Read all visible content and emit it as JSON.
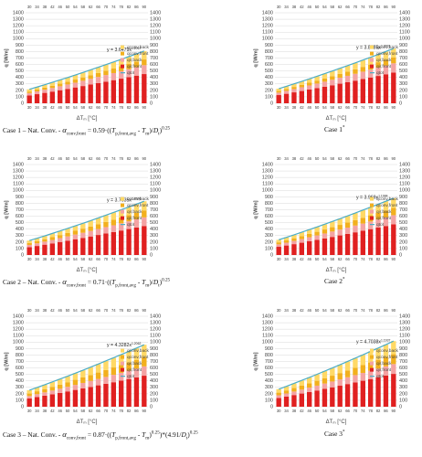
{
  "chart_data": [
    {
      "type": "bar",
      "caption": [
        "Case 1 – Nat. Conv. - ",
        "α",
        "conv,front",
        " = 0.59·((",
        "T",
        "p,front,avg",
        " - ",
        "T",
        "m",
        ")/",
        "D",
        "t",
        ")",
        "0.25"
      ],
      "y_label": "q [W/m]",
      "x_label": [
        "ΔT",
        "m",
        " [°C]"
      ],
      "categories": [
        30,
        34,
        38,
        42,
        46,
        50,
        54,
        58,
        62,
        66,
        70,
        74,
        78,
        82,
        86,
        90
      ],
      "ylim": [
        0,
        1400
      ],
      "yticks": [
        0,
        100,
        200,
        300,
        400,
        500,
        600,
        700,
        800,
        900,
        1000,
        1100,
        1200,
        1300,
        1400
      ],
      "grid": true,
      "trendline": {
        "text": "y = 3.6479x",
        "exponent": "1.2017"
      },
      "series": [
        {
          "name": "qconv,back",
          "color": "#ffd966",
          "values": [
            34,
            39,
            45,
            52,
            58,
            64,
            71,
            77,
            82,
            89,
            95,
            102,
            108,
            115,
            123,
            130
          ]
        },
        {
          "name": "qconv,front",
          "color": "#f2b01e",
          "values": [
            24,
            28,
            32,
            36,
            40,
            44,
            48,
            52,
            57,
            61,
            66,
            70,
            75,
            80,
            84,
            89
          ]
        },
        {
          "name": "qir,back",
          "color": "#f4a3a3",
          "values": [
            37,
            43,
            49,
            55,
            61,
            68,
            74,
            81,
            88,
            95,
            102,
            109,
            116,
            123,
            130,
            137
          ]
        },
        {
          "name": "qir,front",
          "color": "#e02020",
          "values": [
            121,
            141,
            161,
            181,
            202,
            223,
            245,
            267,
            290,
            312,
            335,
            358,
            381,
            405,
            428,
            452
          ]
        },
        {
          "name": "qtot",
          "type": "line",
          "color": "#4bacc6",
          "values": [
            216,
            251,
            287,
            324,
            361,
            399,
            438,
            477,
            517,
            557,
            598,
            639,
            680,
            723,
            765,
            808
          ]
        }
      ]
    },
    {
      "type": "bar",
      "caption": [
        "Case 1",
        "*"
      ],
      "y_label": "q [W/m]",
      "x_label": [
        "ΔT",
        "m",
        " [°C]"
      ],
      "categories": [
        30,
        34,
        38,
        42,
        46,
        50,
        54,
        58,
        62,
        66,
        70,
        74,
        78,
        82,
        86,
        90
      ],
      "ylim": [
        0,
        1400
      ],
      "yticks": [
        0,
        100,
        200,
        300,
        400,
        500,
        600,
        700,
        800,
        900,
        1000,
        1100,
        1200,
        1300,
        1400
      ],
      "grid": true,
      "trendline": {
        "text": "y = 3.8185x",
        "exponent": "1.2001"
      },
      "series": [
        {
          "name": "qconv,back",
          "color": "#ffd966",
          "values": [
            36,
            42,
            48,
            54,
            60,
            67,
            74,
            80,
            86,
            94,
            100,
            106,
            114,
            121,
            128,
            135
          ]
        },
        {
          "name": "qconv,front",
          "color": "#f2b01e",
          "values": [
            25,
            29,
            33,
            37,
            42,
            46,
            50,
            55,
            60,
            64,
            69,
            74,
            78,
            83,
            88,
            93
          ]
        },
        {
          "name": "qir,back",
          "color": "#f4a3a3",
          "values": [
            38,
            45,
            51,
            58,
            64,
            71,
            78,
            85,
            92,
            99,
            106,
            114,
            121,
            129,
            136,
            144
          ]
        },
        {
          "name": "qir,front",
          "color": "#e02020",
          "values": [
            127,
            147,
            169,
            190,
            212,
            234,
            256,
            279,
            303,
            326,
            350,
            375,
            399,
            423,
            449,
            474
          ]
        },
        {
          "name": "qtot",
          "type": "line",
          "color": "#4bacc6",
          "values": [
            226,
            263,
            301,
            339,
            378,
            418,
            458,
            499,
            541,
            583,
            625,
            669,
            712,
            756,
            801,
            846
          ]
        }
      ]
    },
    {
      "type": "bar",
      "caption": [
        "Case 2 – Nat. Conv. - ",
        "α",
        "conv,front",
        " = 0.71·((",
        "T",
        "p,front,avg",
        " - ",
        "T",
        "m",
        ")/",
        "D",
        "t",
        ")",
        "0.25"
      ],
      "y_label": "q [W/m]",
      "x_label": [
        "ΔT",
        "m",
        " [°C]"
      ],
      "categories": [
        30,
        34,
        38,
        42,
        46,
        50,
        54,
        58,
        62,
        66,
        70,
        74,
        78,
        82,
        86,
        90
      ],
      "ylim": [
        0,
        1400
      ],
      "yticks": [
        0,
        100,
        200,
        300,
        400,
        500,
        600,
        700,
        800,
        900,
        1000,
        1100,
        1200,
        1300,
        1400
      ],
      "grid": true,
      "trendline": {
        "text": "y = 3.7635x",
        "exponent": "1.2006"
      },
      "series": [
        {
          "name": "qconv,back",
          "color": "#ffd966",
          "values": [
            38,
            44,
            51,
            58,
            63,
            70,
            76,
            83,
            91,
            97,
            104,
            112,
            119,
            126,
            134,
            142
          ]
        },
        {
          "name": "qconv,front",
          "color": "#f2b01e",
          "values": [
            29,
            34,
            38,
            43,
            48,
            53,
            59,
            64,
            69,
            75,
            80,
            86,
            91,
            97,
            102,
            108
          ]
        },
        {
          "name": "qir,back",
          "color": "#f4a3a3",
          "values": [
            36,
            41,
            47,
            53,
            60,
            66,
            72,
            79,
            85,
            92,
            99,
            105,
            112,
            119,
            126,
            133
          ]
        },
        {
          "name": "qir,front",
          "color": "#e02020",
          "values": [
            120,
            140,
            160,
            180,
            201,
            222,
            244,
            265,
            287,
            310,
            333,
            355,
            379,
            402,
            426,
            449
          ]
        },
        {
          "name": "qtot",
          "type": "line",
          "color": "#4bacc6",
          "values": [
            223,
            259,
            296,
            334,
            372,
            411,
            451,
            491,
            532,
            574,
            616,
            658,
            701,
            744,
            788,
            832
          ]
        }
      ]
    },
    {
      "type": "bar",
      "caption": [
        "Case 2",
        "*"
      ],
      "y_label": "q [W/m]",
      "x_label": [
        "ΔT",
        "m",
        " [°C]"
      ],
      "categories": [
        30,
        34,
        38,
        42,
        46,
        50,
        54,
        58,
        62,
        66,
        70,
        74,
        78,
        82,
        86,
        90
      ],
      "ylim": [
        0,
        1400
      ],
      "yticks": [
        0,
        100,
        200,
        300,
        400,
        500,
        600,
        700,
        800,
        900,
        1000,
        1100,
        1200,
        1300,
        1400
      ],
      "grid": true,
      "trendline": {
        "text": "y = 3.969x",
        "exponent": "1.1984"
      },
      "series": [
        {
          "name": "qconv,back",
          "color": "#ffd966",
          "values": [
            39,
            47,
            53,
            60,
            67,
            75,
            81,
            88,
            96,
            103,
            110,
            119,
            126,
            134,
            142,
            149
          ]
        },
        {
          "name": "qconv,front",
          "color": "#f2b01e",
          "values": [
            31,
            35,
            41,
            46,
            51,
            56,
            62,
            67,
            73,
            79,
            85,
            90,
            96,
            102,
            108,
            114
          ]
        },
        {
          "name": "qir,back",
          "color": "#f4a3a3",
          "values": [
            38,
            44,
            50,
            56,
            63,
            69,
            76,
            83,
            90,
            97,
            104,
            111,
            118,
            126,
            133,
            141
          ]
        },
        {
          "name": "qir,front",
          "color": "#e02020",
          "values": [
            127,
            147,
            168,
            190,
            212,
            234,
            257,
            280,
            303,
            327,
            351,
            375,
            400,
            424,
            449,
            475
          ]
        },
        {
          "name": "qtot",
          "type": "line",
          "color": "#4bacc6",
          "values": [
            235,
            273,
            312,
            352,
            393,
            434,
            476,
            518,
            562,
            606,
            650,
            695,
            740,
            786,
            832,
            879
          ]
        }
      ]
    },
    {
      "type": "bar",
      "caption": [
        "Case 3 – Nat. Conv. - ",
        "α",
        "conv,front",
        " = 0.87·((",
        "T",
        "p,front,avg",
        " - ",
        "T",
        "m",
        ")",
        "0.25",
        ")*(4.91/",
        "D",
        "t",
        ")",
        "0.25"
      ],
      "y_label": "q [W/m]",
      "x_label": [
        "ΔT",
        "m",
        " [°C]"
      ],
      "categories": [
        30,
        34,
        38,
        42,
        46,
        50,
        54,
        58,
        62,
        66,
        70,
        74,
        78,
        82,
        86,
        90
      ],
      "ylim": [
        0,
        1400
      ],
      "yticks": [
        0,
        100,
        200,
        300,
        400,
        500,
        600,
        700,
        800,
        900,
        1000,
        1100,
        1200,
        1300,
        1400
      ],
      "grid": true,
      "trendline": {
        "text": "y = 4.3282x",
        "exponent": "1.2062"
      },
      "series": [
        {
          "name": "qconv,back",
          "color": "#ffd966",
          "values": [
            52,
            59,
            68,
            76,
            86,
            94,
            103,
            112,
            122,
            132,
            142,
            151,
            161,
            170,
            182,
            191
          ]
        },
        {
          "name": "qconv,front",
          "color": "#f2b01e",
          "values": [
            38,
            45,
            51,
            58,
            64,
            71,
            78,
            85,
            92,
            99,
            106,
            114,
            121,
            129,
            136,
            144
          ]
        },
        {
          "name": "qir,back",
          "color": "#f4a3a3",
          "values": [
            38,
            45,
            51,
            58,
            64,
            71,
            78,
            85,
            92,
            99,
            106,
            114,
            121,
            129,
            136,
            144
          ]
        },
        {
          "name": "qir,front",
          "color": "#e02020",
          "values": [
            128,
            149,
            171,
            192,
            214,
            237,
            260,
            283,
            307,
            331,
            355,
            379,
            404,
            429,
            454,
            480
          ]
        },
        {
          "name": "qtot",
          "type": "line",
          "color": "#4bacc6",
          "values": [
            256,
            298,
            341,
            384,
            428,
            473,
            519,
            565,
            613,
            661,
            709,
            758,
            807,
            857,
            908,
            959
          ]
        }
      ]
    },
    {
      "type": "bar",
      "caption": [
        "Case 3",
        "*"
      ],
      "y_label": "q [W/m]",
      "x_label": [
        "ΔT",
        "m",
        " [°C]"
      ],
      "categories": [
        30,
        34,
        38,
        42,
        46,
        50,
        54,
        58,
        62,
        66,
        70,
        74,
        78,
        82,
        86,
        90
      ],
      "ylim": [
        0,
        1400
      ],
      "yticks": [
        0,
        100,
        200,
        300,
        400,
        500,
        600,
        700,
        800,
        900,
        1000,
        1100,
        1200,
        1300,
        1400
      ],
      "grid": true,
      "trendline": {
        "text": "y = 4.7038x",
        "exponent": "1.1937"
      },
      "series": [
        {
          "name": "qconv,back",
          "color": "#ffd966",
          "values": [
            54,
            64,
            72,
            81,
            91,
            101,
            109,
            120,
            129,
            140,
            150,
            160,
            172,
            182,
            192,
            203
          ]
        },
        {
          "name": "qconv,front",
          "color": "#f2b01e",
          "values": [
            41,
            47,
            54,
            61,
            68,
            75,
            83,
            90,
            98,
            105,
            113,
            121,
            128,
            136,
            144,
            152
          ]
        },
        {
          "name": "qir,back",
          "color": "#f4a3a3",
          "values": [
            41,
            47,
            54,
            61,
            68,
            75,
            83,
            90,
            98,
            105,
            113,
            121,
            128,
            136,
            144,
            152
          ]
        },
        {
          "name": "qir,front",
          "color": "#e02020",
          "values": [
            136,
            158,
            181,
            204,
            227,
            251,
            276,
            300,
            325,
            351,
            376,
            402,
            428,
            454,
            481,
            508
          ]
        },
        {
          "name": "qtot",
          "type": "line",
          "color": "#4bacc6",
          "values": [
            272,
            316,
            361,
            407,
            454,
            502,
            551,
            600,
            650,
            701,
            752,
            804,
            856,
            908,
            961,
            1015
          ]
        }
      ]
    }
  ]
}
